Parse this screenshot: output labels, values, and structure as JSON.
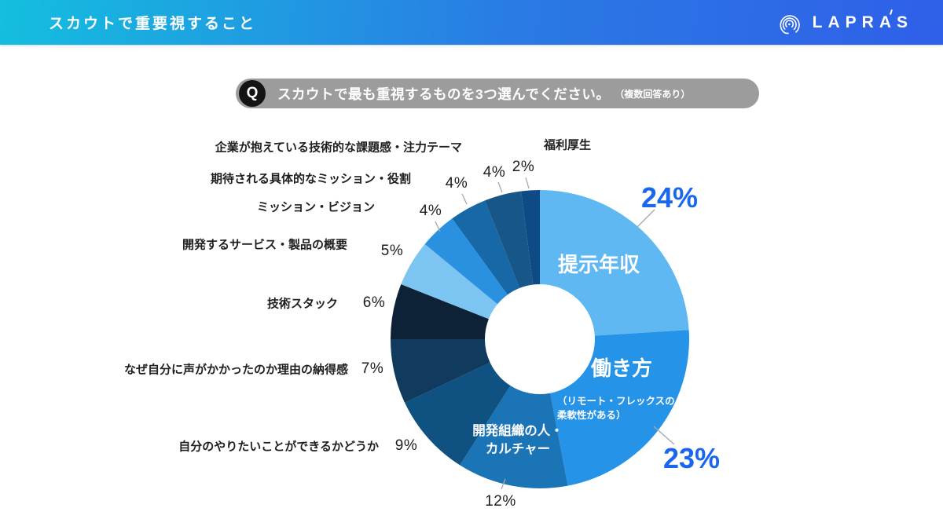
{
  "header": {
    "title": "スカウトで重要視すること",
    "brand": "LAPRAS",
    "gradient_left": "#14bedf",
    "gradient_right": "#2f5fe8"
  },
  "question": {
    "q_label": "Q",
    "text": "スカウトで最も重視するものを3つ選んでください。",
    "note": "（複数回答あり）",
    "pill_color": "#9c9c9c",
    "badge_color": "#141414"
  },
  "chart_data": {
    "type": "pie",
    "style": "donut",
    "title": "スカウトで最も重視するものを3つ選んでください。（複数回答あり）",
    "direction": "clockwise",
    "start_angle_deg": 0,
    "inner_radius_ratio": 0.37,
    "legend": "none",
    "unit": "%",
    "categories": [
      "提示年収",
      "働き方",
      "開発組織の人・カルチャー",
      "自分のやりたいことができるかどうか",
      "なぜ自分に声がかかったのか理由の納得感",
      "技術スタック",
      "開発するサービス・製品の概要",
      "ミッション・ビジョン",
      "期待される具体的なミッション・役割",
      "企業が抱えている技術的な課題感・注力テーマ",
      "福利厚生"
    ],
    "values": [
      24,
      23,
      12,
      9,
      7,
      6,
      5,
      4,
      4,
      4,
      2
    ],
    "colors": [
      "#5fb8f1",
      "#2593e8",
      "#1a74b6",
      "#0f5181",
      "#113a5f",
      "#0d2237",
      "#7cc4f2",
      "#2a91e0",
      "#1668a6",
      "#175689",
      "#0e4b84"
    ],
    "value_label_color": "#1d1d1d",
    "accent_value_color": "#1a66ef",
    "emphasized": [
      {
        "category": "提示年収",
        "label": "24%"
      },
      {
        "category": "働き方",
        "label": "23%"
      }
    ],
    "inside_labels": [
      {
        "segment": "提示年収",
        "lines": [
          "提示年収"
        ]
      },
      {
        "segment": "働き方",
        "lines": [
          "働き方"
        ],
        "sub_lines": [
          "（リモート・フレックスの",
          "柔軟性がある）"
        ]
      },
      {
        "segment": "開発組織の人・カルチャー",
        "lines": [
          "開発組織の人・",
          "カルチャー"
        ]
      }
    ]
  }
}
